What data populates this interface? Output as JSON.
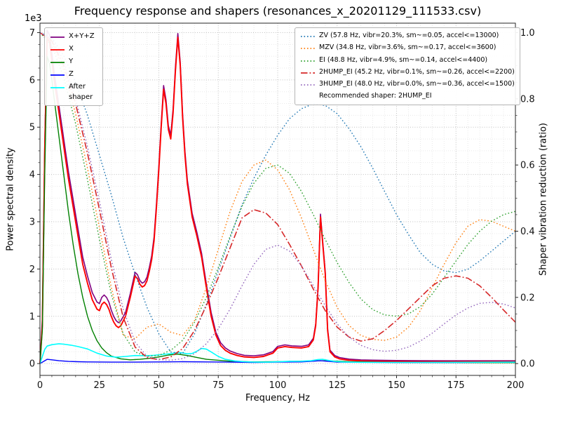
{
  "legend_psd": {
    "entries": [
      {
        "label": "X+Y+Z",
        "color": "#800080",
        "style": "solid"
      },
      {
        "label": "X",
        "color": "#ff0000",
        "style": "solid"
      },
      {
        "label": "Y",
        "color": "#008000",
        "style": "solid"
      },
      {
        "label": "Z",
        "color": "#0000ff",
        "style": "solid"
      },
      {
        "label": "After shaper",
        "color": "#00ffff",
        "style": "solid"
      }
    ]
  },
  "legend_shapers": {
    "entries": [
      {
        "label": "ZV (57.8 Hz, vibr=20.3%, sm~=0.05, accel<=13000)",
        "color": "#1f77b4",
        "style": "dotted"
      },
      {
        "label": "MZV (34.8 Hz, vibr=3.6%, sm~=0.17, accel<=3600)",
        "color": "#ff7f0e",
        "style": "dotted"
      },
      {
        "label": "EI (48.8 Hz, vibr=4.9%, sm~=0.14, accel<=4400)",
        "color": "#2ca02c",
        "style": "dotted"
      },
      {
        "label": "2HUMP_EI (45.2 Hz, vibr=0.1%, sm~=0.26, accel<=2200)",
        "color": "#d62728",
        "style": "dashdot"
      },
      {
        "label": "3HUMP_EI (48.0 Hz, vibr=0.0%, sm~=0.36, accel<=1500)",
        "color": "#9467bd",
        "style": "dotted"
      }
    ],
    "note": "Recommended shaper: 2HUMP_EI"
  },
  "chart_data": {
    "type": "line",
    "title": "Frequency response and shapers (resonances_x_20201129_111533.csv)",
    "xlabel": "Frequency, Hz",
    "ylabel_left": "Power spectral density",
    "ylabel_right": "Shaper vibration reduction (ratio)",
    "y_left_offset": "1e3",
    "recommended_shaper": "2HUMP_EI",
    "grid": true,
    "x_range": [
      0,
      200
    ],
    "y_left_range": [
      -250,
      7200
    ],
    "y_right_range": [
      -0.0357,
      1.0286
    ],
    "x_ticks": [
      0,
      25,
      50,
      75,
      100,
      125,
      150,
      175,
      200
    ],
    "y_left_ticks": [
      0,
      1,
      2,
      3,
      4,
      5,
      6,
      7
    ],
    "y_left_tick_scale": 1000,
    "y_right_ticks": [
      "0.0",
      "0.2",
      "0.4",
      "0.6",
      "0.8",
      "1.0"
    ],
    "series": [
      {
        "name": "X+Y+Z",
        "axis": "left",
        "color": "#800080",
        "style": "solid",
        "width": 1.6,
        "x": [
          0,
          1,
          2,
          3,
          4,
          5,
          6,
          8,
          10,
          12,
          14,
          16,
          18,
          20,
          22,
          24,
          25,
          26,
          27,
          28,
          29,
          30,
          31,
          32,
          33,
          34,
          36,
          38,
          40,
          41,
          42,
          43,
          44,
          45,
          46,
          47,
          48,
          49,
          50,
          51,
          52,
          53,
          54,
          55,
          56,
          57,
          58,
          59,
          60,
          61,
          62,
          64,
          66,
          68,
          70,
          72,
          74,
          76,
          78,
          80,
          83,
          86,
          90,
          94,
          98,
          100,
          103,
          106,
          110,
          113,
          115,
          116,
          117,
          118,
          119,
          120,
          121,
          122,
          124,
          126,
          130,
          135,
          140,
          150,
          160,
          170,
          180,
          190,
          200
        ],
        "y": [
          0,
          950,
          4650,
          7050,
          6950,
          6550,
          6150,
          5450,
          4750,
          4050,
          3450,
          2850,
          2250,
          1850,
          1500,
          1300,
          1270,
          1400,
          1450,
          1400,
          1300,
          1130,
          1000,
          910,
          865,
          905,
          1080,
          1480,
          1930,
          1880,
          1760,
          1700,
          1730,
          1830,
          2030,
          2280,
          2680,
          3380,
          4180,
          5080,
          5880,
          5580,
          5030,
          4830,
          5380,
          6280,
          6980,
          6380,
          5280,
          4480,
          3880,
          3180,
          2780,
          2330,
          1680,
          1080,
          660,
          440,
          330,
          265,
          210,
          175,
          165,
          185,
          255,
          365,
          395,
          375,
          365,
          395,
          535,
          840,
          1650,
          3160,
          2550,
          1950,
          740,
          285,
          170,
          128,
          95,
          78,
          72,
          65,
          60,
          58,
          58,
          58,
          58
        ]
      },
      {
        "name": "X",
        "axis": "left",
        "color": "#ff0000",
        "style": "solid",
        "width": 1.9,
        "x": [
          0,
          1,
          2,
          3,
          4,
          5,
          6,
          8,
          10,
          12,
          14,
          16,
          18,
          20,
          22,
          24,
          25,
          26,
          27,
          28,
          29,
          30,
          31,
          32,
          33,
          34,
          36,
          38,
          40,
          41,
          42,
          43,
          44,
          45,
          46,
          47,
          48,
          49,
          50,
          51,
          52,
          53,
          54,
          55,
          56,
          57,
          58,
          59,
          60,
          61,
          62,
          64,
          66,
          68,
          70,
          72,
          74,
          76,
          78,
          80,
          83,
          86,
          90,
          94,
          98,
          100,
          103,
          106,
          110,
          113,
          115,
          116,
          117,
          118,
          119,
          120,
          121,
          122,
          124,
          126,
          130,
          135,
          140,
          150,
          160,
          170,
          180,
          190,
          200
        ],
        "y": [
          0,
          800,
          4500,
          6900,
          6800,
          6400,
          6000,
          5300,
          4600,
          3900,
          3300,
          2700,
          2100,
          1700,
          1350,
          1150,
          1120,
          1250,
          1300,
          1250,
          1150,
          1000,
          880,
          800,
          760,
          800,
          1000,
          1400,
          1850,
          1800,
          1680,
          1620,
          1650,
          1750,
          1950,
          2200,
          2600,
          3300,
          4100,
          5000,
          5800,
          5500,
          4950,
          4750,
          5300,
          6200,
          6900,
          6300,
          5200,
          4400,
          3800,
          3100,
          2700,
          2250,
          1600,
          1000,
          600,
          380,
          280,
          220,
          170,
          140,
          130,
          150,
          220,
          330,
          360,
          340,
          330,
          360,
          500,
          800,
          1600,
          3100,
          2500,
          1900,
          700,
          250,
          140,
          100,
          70,
          55,
          50,
          45,
          40,
          40,
          40,
          40,
          40
        ]
      },
      {
        "name": "Y",
        "axis": "left",
        "color": "#008000",
        "style": "solid",
        "width": 1.4,
        "x": [
          0,
          1,
          2,
          3,
          4,
          5,
          6,
          8,
          10,
          12,
          14,
          16,
          18,
          20,
          22,
          24,
          26,
          28,
          30,
          34,
          38,
          42,
          46,
          50,
          54,
          58,
          62,
          66,
          70,
          80,
          90,
          100,
          110,
          120,
          130,
          150,
          175,
          200
        ],
        "y": [
          0,
          700,
          4000,
          6500,
          6350,
          6000,
          5600,
          4800,
          4000,
          3200,
          2500,
          1900,
          1400,
          1000,
          700,
          480,
          330,
          230,
          160,
          100,
          80,
          90,
          110,
          140,
          180,
          200,
          170,
          130,
          90,
          50,
          35,
          40,
          50,
          60,
          40,
          25,
          20,
          20
        ]
      },
      {
        "name": "Z",
        "axis": "left",
        "color": "#0000ff",
        "style": "solid",
        "width": 1.4,
        "x": [
          0,
          2,
          3,
          5,
          8,
          12,
          16,
          20,
          30,
          40,
          50,
          60,
          70,
          80,
          90,
          100,
          110,
          118,
          125,
          150,
          175,
          200
        ],
        "y": [
          0,
          60,
          90,
          80,
          60,
          45,
          40,
          35,
          30,
          30,
          35,
          40,
          35,
          30,
          25,
          30,
          35,
          60,
          30,
          25,
          25,
          30
        ]
      },
      {
        "name": "After shaper",
        "axis": "left",
        "color": "#00ffff",
        "style": "solid",
        "width": 1.6,
        "x": [
          0,
          1,
          2,
          3,
          5,
          8,
          10,
          13,
          16,
          20,
          24,
          28,
          32,
          36,
          40,
          44,
          48,
          52,
          55,
          58,
          60,
          62,
          64,
          66,
          68,
          70,
          72,
          75,
          78,
          82,
          86,
          90,
          95,
          100,
          105,
          110,
          114,
          117,
          119,
          121,
          124,
          128,
          135,
          145,
          160,
          180,
          200
        ],
        "y": [
          0,
          150,
          300,
          370,
          400,
          420,
          410,
          390,
          360,
          310,
          220,
          160,
          135,
          150,
          170,
          165,
          175,
          195,
          210,
          235,
          225,
          205,
          215,
          260,
          320,
          305,
          245,
          150,
          90,
          55,
          40,
          32,
          30,
          38,
          48,
          50,
          60,
          85,
          90,
          70,
          45,
          33,
          27,
          25,
          25,
          28,
          30
        ]
      },
      {
        "name": "ZV",
        "axis": "right",
        "color": "#1f77b4",
        "style": "dotted",
        "width": 1.4,
        "x": [
          0,
          5,
          10,
          15,
          20,
          25,
          30,
          35,
          40,
          45,
          50,
          55,
          60,
          65,
          70,
          75,
          80,
          85,
          90,
          95,
          100,
          105,
          110,
          115,
          120,
          125,
          130,
          135,
          140,
          145,
          150,
          155,
          160,
          165,
          170,
          175,
          180,
          185,
          190,
          195,
          200
        ],
        "y": [
          1.0,
          0.985,
          0.93,
          0.85,
          0.75,
          0.63,
          0.51,
          0.38,
          0.27,
          0.17,
          0.09,
          0.035,
          0.03,
          0.09,
          0.18,
          0.28,
          0.38,
          0.48,
          0.56,
          0.63,
          0.69,
          0.74,
          0.77,
          0.785,
          0.78,
          0.755,
          0.71,
          0.655,
          0.59,
          0.52,
          0.45,
          0.39,
          0.335,
          0.3,
          0.28,
          0.275,
          0.285,
          0.31,
          0.34,
          0.37,
          0.4
        ]
      },
      {
        "name": "MZV",
        "axis": "right",
        "color": "#ff7f0e",
        "style": "dotted",
        "width": 1.4,
        "x": [
          0,
          5,
          10,
          15,
          20,
          25,
          30,
          35,
          40,
          45,
          50,
          55,
          60,
          65,
          70,
          75,
          80,
          85,
          90,
          95,
          100,
          105,
          110,
          115,
          120,
          125,
          130,
          135,
          140,
          145,
          150,
          155,
          160,
          165,
          170,
          175,
          180,
          185,
          190,
          195,
          200
        ],
        "y": [
          1.0,
          0.97,
          0.885,
          0.755,
          0.59,
          0.41,
          0.23,
          0.085,
          0.075,
          0.11,
          0.12,
          0.095,
          0.085,
          0.13,
          0.23,
          0.345,
          0.46,
          0.55,
          0.6,
          0.615,
          0.585,
          0.525,
          0.44,
          0.345,
          0.25,
          0.17,
          0.115,
          0.085,
          0.073,
          0.07,
          0.08,
          0.11,
          0.16,
          0.23,
          0.3,
          0.365,
          0.415,
          0.435,
          0.43,
          0.415,
          0.4
        ]
      },
      {
        "name": "EI",
        "axis": "right",
        "color": "#2ca02c",
        "style": "dotted",
        "width": 1.4,
        "x": [
          0,
          5,
          10,
          15,
          20,
          25,
          30,
          35,
          40,
          45,
          50,
          55,
          60,
          65,
          70,
          75,
          80,
          85,
          90,
          95,
          100,
          105,
          110,
          115,
          120,
          125,
          130,
          135,
          140,
          145,
          150,
          155,
          160,
          165,
          170,
          175,
          180,
          185,
          190,
          195,
          200
        ],
        "y": [
          1.0,
          0.96,
          0.865,
          0.725,
          0.555,
          0.375,
          0.21,
          0.09,
          0.035,
          0.022,
          0.025,
          0.04,
          0.07,
          0.125,
          0.2,
          0.29,
          0.385,
          0.475,
          0.545,
          0.59,
          0.6,
          0.575,
          0.52,
          0.45,
          0.375,
          0.305,
          0.245,
          0.195,
          0.163,
          0.147,
          0.143,
          0.15,
          0.172,
          0.21,
          0.26,
          0.31,
          0.36,
          0.4,
          0.43,
          0.45,
          0.46
        ]
      },
      {
        "name": "2HUMP_EI",
        "axis": "right",
        "color": "#d62728",
        "style": "dashdot",
        "width": 1.6,
        "x": [
          0,
          5,
          10,
          15,
          20,
          25,
          30,
          35,
          40,
          45,
          50,
          55,
          60,
          65,
          70,
          75,
          80,
          85,
          90,
          95,
          100,
          105,
          110,
          115,
          120,
          125,
          130,
          135,
          140,
          145,
          150,
          155,
          160,
          165,
          170,
          175,
          180,
          185,
          190,
          195,
          200
        ],
        "y": [
          1.0,
          0.975,
          0.9,
          0.785,
          0.635,
          0.465,
          0.29,
          0.14,
          0.05,
          0.018,
          0.012,
          0.02,
          0.045,
          0.1,
          0.175,
          0.26,
          0.35,
          0.44,
          0.465,
          0.455,
          0.42,
          0.36,
          0.295,
          0.225,
          0.16,
          0.11,
          0.08,
          0.068,
          0.075,
          0.1,
          0.13,
          0.165,
          0.2,
          0.235,
          0.258,
          0.265,
          0.258,
          0.235,
          0.2,
          0.162,
          0.125
        ]
      },
      {
        "name": "3HUMP_EI",
        "axis": "right",
        "color": "#9467bd",
        "style": "dotted",
        "width": 1.4,
        "x": [
          0,
          5,
          10,
          15,
          20,
          25,
          30,
          35,
          40,
          45,
          50,
          55,
          60,
          65,
          70,
          75,
          80,
          85,
          90,
          95,
          100,
          105,
          110,
          115,
          120,
          125,
          130,
          135,
          140,
          145,
          150,
          155,
          160,
          165,
          170,
          175,
          180,
          185,
          190,
          195,
          200
        ],
        "y": [
          1.0,
          0.98,
          0.915,
          0.8,
          0.655,
          0.49,
          0.315,
          0.165,
          0.065,
          0.022,
          0.012,
          0.01,
          0.015,
          0.03,
          0.06,
          0.105,
          0.165,
          0.235,
          0.3,
          0.345,
          0.358,
          0.34,
          0.295,
          0.235,
          0.175,
          0.12,
          0.08,
          0.055,
          0.042,
          0.037,
          0.04,
          0.05,
          0.068,
          0.092,
          0.12,
          0.147,
          0.168,
          0.182,
          0.185,
          0.18,
          0.168
        ]
      }
    ]
  }
}
